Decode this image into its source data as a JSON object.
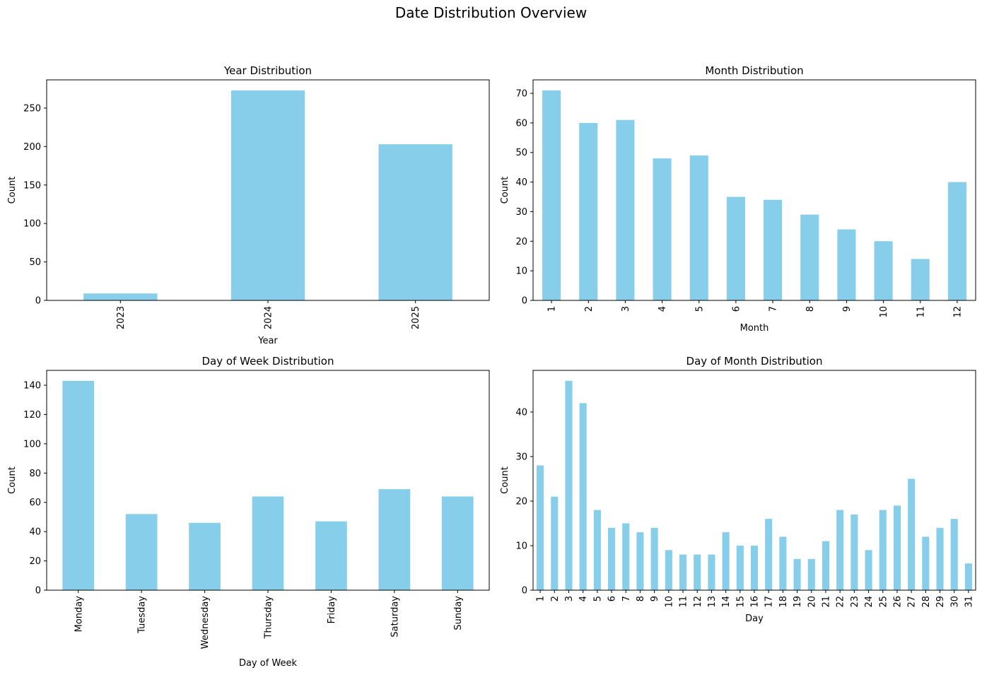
{
  "figure": {
    "title": "Date Distribution Overview",
    "bar_color": "#87ceeb"
  },
  "chart_data": [
    {
      "type": "bar",
      "title": "Year Distribution",
      "xlabel": "Year",
      "ylabel": "Count",
      "categories": [
        "2023",
        "2024",
        "2025"
      ],
      "values": [
        9,
        273,
        203
      ],
      "ylim": [
        0,
        286.7
      ],
      "yticks": [
        0,
        50,
        100,
        150,
        200,
        250
      ],
      "xtick_rotation": 90,
      "grid": false
    },
    {
      "type": "bar",
      "title": "Month Distribution",
      "xlabel": "Month",
      "ylabel": "Count",
      "categories": [
        "1",
        "2",
        "3",
        "4",
        "5",
        "6",
        "7",
        "8",
        "9",
        "10",
        "11",
        "12"
      ],
      "values": [
        71,
        60,
        61,
        48,
        49,
        35,
        34,
        29,
        24,
        20,
        14,
        40
      ],
      "ylim": [
        0,
        74.55
      ],
      "yticks": [
        0,
        10,
        20,
        30,
        40,
        50,
        60,
        70
      ],
      "xtick_rotation": 90,
      "grid": false
    },
    {
      "type": "bar",
      "title": "Day of Week Distribution",
      "xlabel": "Day of Week",
      "ylabel": "Count",
      "categories": [
        "Monday",
        "Tuesday",
        "Wednesday",
        "Thursday",
        "Friday",
        "Saturday",
        "Sunday"
      ],
      "values": [
        143,
        52,
        46,
        64,
        47,
        69,
        64
      ],
      "ylim": [
        0,
        150.15
      ],
      "yticks": [
        0,
        20,
        40,
        60,
        80,
        100,
        120,
        140
      ],
      "xtick_rotation": 90,
      "grid": false
    },
    {
      "type": "bar",
      "title": "Day of Month Distribution",
      "xlabel": "Day",
      "ylabel": "Count",
      "categories": [
        "1",
        "2",
        "3",
        "4",
        "5",
        "6",
        "7",
        "8",
        "9",
        "10",
        "11",
        "12",
        "13",
        "14",
        "15",
        "16",
        "17",
        "18",
        "19",
        "20",
        "21",
        "22",
        "23",
        "24",
        "25",
        "26",
        "27",
        "28",
        "29",
        "30",
        "31"
      ],
      "values": [
        28,
        21,
        47,
        42,
        18,
        14,
        15,
        13,
        14,
        9,
        8,
        8,
        8,
        13,
        10,
        10,
        16,
        12,
        7,
        7,
        11,
        18,
        17,
        9,
        18,
        19,
        25,
        12,
        14,
        16,
        6
      ],
      "ylim": [
        0,
        49.35
      ],
      "yticks": [
        0,
        10,
        20,
        30,
        40
      ],
      "xtick_rotation": 90,
      "grid": false
    }
  ]
}
